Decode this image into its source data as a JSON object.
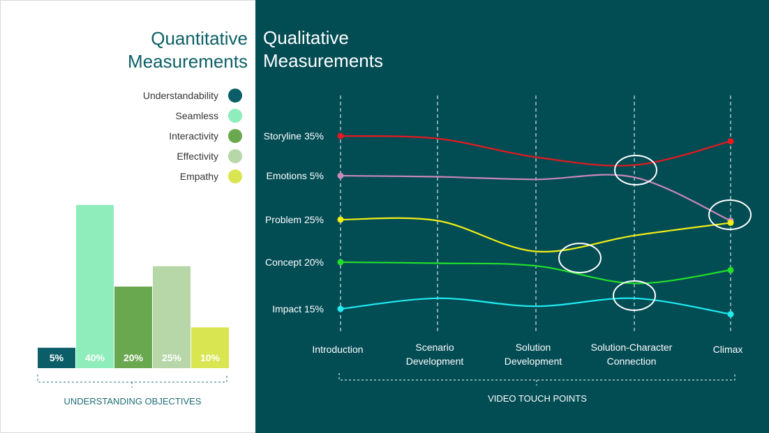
{
  "left_panel": {
    "title_lines": [
      "Quantitative",
      "Measurements"
    ],
    "legend": [
      {
        "label": "Understandability",
        "color": "#0b5e68"
      },
      {
        "label": "Seamless",
        "color": "#8eedbb"
      },
      {
        "label": "Interactivity",
        "color": "#6aa84f"
      },
      {
        "label": "Effectivity",
        "color": "#b7d7a8"
      },
      {
        "label": "Empathy",
        "color": "#d9e651"
      }
    ]
  },
  "right_panel": {
    "title_lines": [
      "Qualitative",
      "Measurements"
    ]
  },
  "chart_data": [
    {
      "type": "bar",
      "categories": [
        "Understandability",
        "Seamless",
        "Interactivity",
        "Effectivity",
        "Empathy"
      ],
      "values": [
        5,
        40,
        20,
        25,
        10
      ],
      "data_labels": [
        "5%",
        "40%",
        "20%",
        "25%",
        "10%"
      ],
      "colors": [
        "#0b5e68",
        "#8eedbb",
        "#6aa84f",
        "#b7d7a8",
        "#d9e651"
      ],
      "xlabel": "UNDERSTANDING OBJECTIVES"
    },
    {
      "type": "line",
      "x": [
        "Introduction",
        "Scenario Development",
        "Solution Development",
        "Solution-Character Connection",
        "Climax"
      ],
      "xlabel": "VIDEO TOUCH POINTS",
      "grid": "vertical dashed",
      "series": [
        {
          "name": "Storyline 35%",
          "color": "#e8191e",
          "values": [
            35,
            34.5,
            31,
            29.5,
            34
          ]
        },
        {
          "name": "Emotions 5%",
          "color": "#cc88b8",
          "values": [
            5,
            4.8,
            4.3,
            4.7,
            -3.5
          ]
        },
        {
          "name": "Problem 25%",
          "color": "#f2ee16",
          "values": [
            25,
            24.8,
            19,
            22,
            24.4
          ]
        },
        {
          "name": "Concept 20%",
          "color": "#22e02a",
          "values": [
            20,
            19.8,
            19.3,
            16,
            18.5
          ]
        },
        {
          "name": "Impact 15%",
          "color": "#21ecf0",
          "values": [
            15,
            17,
            15.5,
            17,
            14
          ]
        }
      ],
      "highlights": [
        "Storyline / Emotions near Solution-Character Connection",
        "Problem / Concept near Solution Development",
        "Concept / Impact at Solution-Character Connection",
        "Emotions / Problem at Climax"
      ]
    }
  ]
}
